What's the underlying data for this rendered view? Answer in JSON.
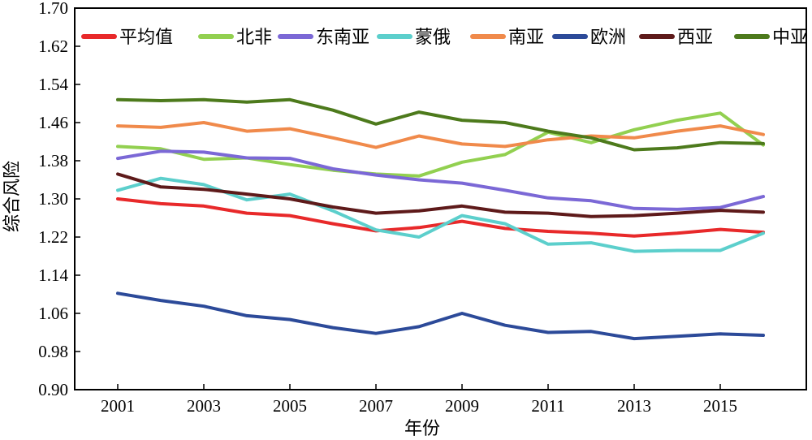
{
  "chart_data": {
    "type": "line",
    "title": "",
    "xlabel": "年份",
    "ylabel": "综合风险",
    "x": [
      2001,
      2002,
      2003,
      2004,
      2005,
      2006,
      2007,
      2008,
      2009,
      2010,
      2011,
      2012,
      2013,
      2014,
      2015,
      2016
    ],
    "xlim": [
      2000,
      2017
    ],
    "ylim": [
      0.9,
      1.7
    ],
    "x_ticks": [
      "2001",
      "2003",
      "2005",
      "2007",
      "2009",
      "2011",
      "2013",
      "2015"
    ],
    "y_ticks": [
      "0.90",
      "0.98",
      "1.06",
      "1.14",
      "1.22",
      "1.30",
      "1.38",
      "1.46",
      "1.54",
      "1.62",
      "1.70"
    ],
    "grid": false,
    "legend_position": "top",
    "series": [
      {
        "name": "平均值",
        "color": "#e8292a",
        "values": [
          1.3,
          1.29,
          1.285,
          1.27,
          1.265,
          1.248,
          1.233,
          1.24,
          1.253,
          1.238,
          1.232,
          1.228,
          1.222,
          1.228,
          1.236,
          1.23
        ]
      },
      {
        "name": "北非",
        "color": "#92d050",
        "values": [
          1.41,
          1.405,
          1.383,
          1.386,
          1.372,
          1.36,
          1.352,
          1.348,
          1.377,
          1.393,
          1.44,
          1.418,
          1.445,
          1.465,
          1.48,
          1.413
        ]
      },
      {
        "name": "东南亚",
        "color": "#7b68d6",
        "values": [
          1.385,
          1.4,
          1.398,
          1.386,
          1.385,
          1.363,
          1.35,
          1.34,
          1.333,
          1.318,
          1.302,
          1.296,
          1.28,
          1.278,
          1.282,
          1.305
        ]
      },
      {
        "name": "蒙俄",
        "color": "#5ccfcc",
        "values": [
          1.318,
          1.343,
          1.33,
          1.298,
          1.31,
          1.275,
          1.235,
          1.22,
          1.265,
          1.248,
          1.205,
          1.208,
          1.19,
          1.192,
          1.192,
          1.228
        ]
      },
      {
        "name": "南亚",
        "color": "#f08a4b",
        "values": [
          1.453,
          1.45,
          1.46,
          1.442,
          1.447,
          1.428,
          1.408,
          1.432,
          1.415,
          1.41,
          1.424,
          1.432,
          1.428,
          1.442,
          1.453,
          1.435
        ]
      },
      {
        "name": "欧洲",
        "color": "#2c4a99",
        "values": [
          1.102,
          1.087,
          1.075,
          1.055,
          1.047,
          1.03,
          1.018,
          1.032,
          1.06,
          1.035,
          1.02,
          1.022,
          1.007,
          1.012,
          1.017,
          1.014
        ]
      },
      {
        "name": "西亚",
        "color": "#5e1a1a",
        "values": [
          1.352,
          1.325,
          1.32,
          1.31,
          1.3,
          1.283,
          1.27,
          1.275,
          1.285,
          1.272,
          1.27,
          1.263,
          1.265,
          1.27,
          1.276,
          1.272
        ]
      },
      {
        "name": "中亚",
        "color": "#4d7a1c",
        "values": [
          1.508,
          1.506,
          1.508,
          1.503,
          1.508,
          1.486,
          1.457,
          1.482,
          1.465,
          1.46,
          1.442,
          1.428,
          1.403,
          1.407,
          1.418,
          1.416
        ]
      }
    ]
  }
}
